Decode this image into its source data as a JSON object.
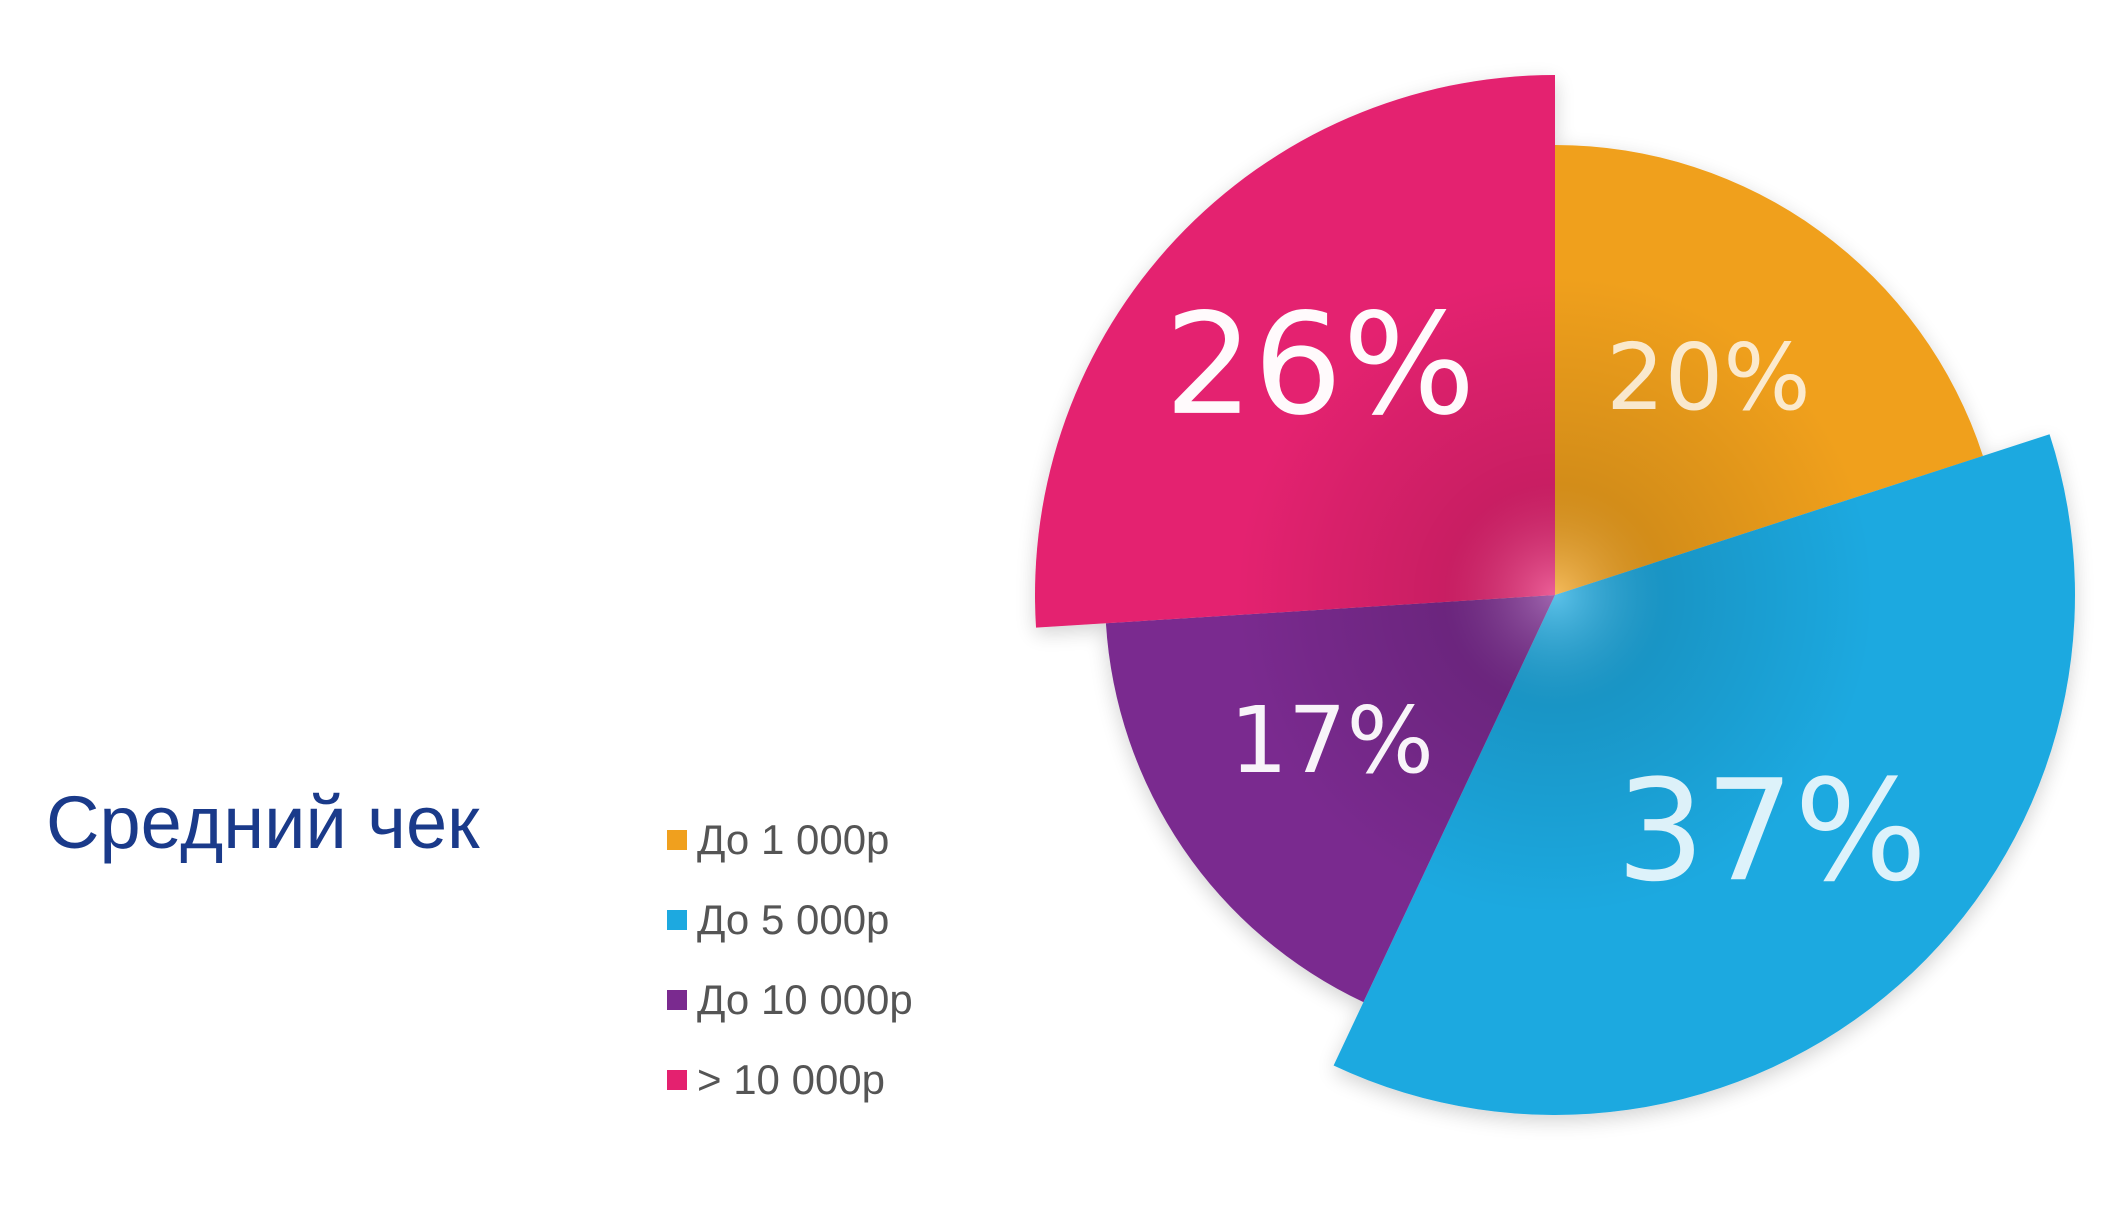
{
  "chart_data": {
    "type": "pie",
    "title": "Средний чек",
    "start_angle_deg": 0,
    "direction": "clockwise",
    "slices": [
      {
        "label": "До 1 000р",
        "value": 20,
        "value_label": "20%",
        "color": "#f0a01e",
        "exploded": false
      },
      {
        "label": "До 5 000р",
        "value": 37,
        "value_label": "37%",
        "color": "#1da9e0",
        "exploded": true
      },
      {
        "label": "До 10 000р",
        "value": 17,
        "value_label": "17%",
        "color": "#7a2a8f",
        "exploded": false
      },
      {
        "label": "> 10 000р",
        "value": 26,
        "value_label": "26%",
        "color": "#e4216f",
        "exploded": true
      }
    ]
  }
}
